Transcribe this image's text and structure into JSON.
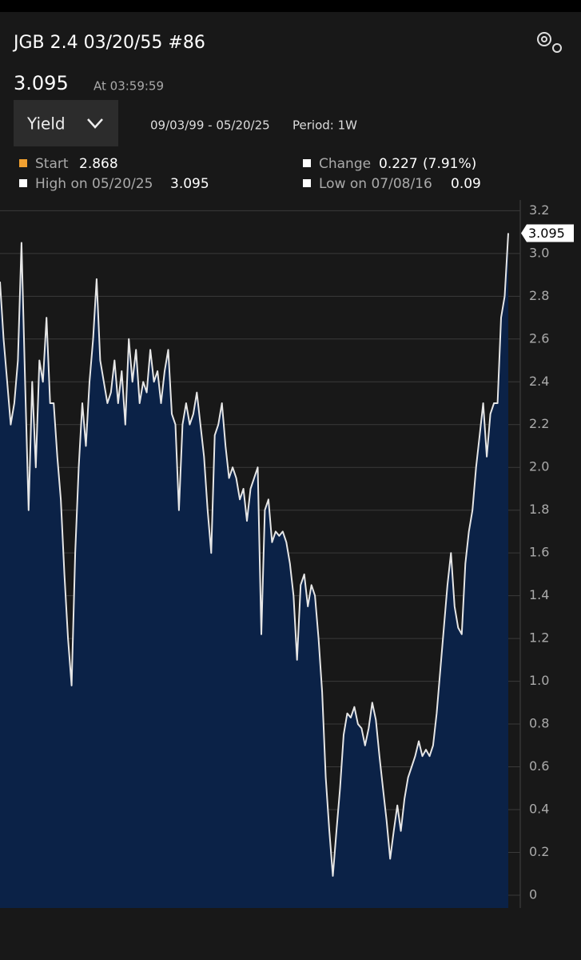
{
  "chart_data": {
    "type": "area",
    "title": "JGB 2.4 03/20/55 #86",
    "last_value": 3.095,
    "time_label": "At 03:59:59",
    "dropdown": "Yield",
    "date_range": "09/03/99 - 05/20/25",
    "period": "Period: 1W",
    "stats": {
      "start_label": "Start",
      "start": 2.868,
      "change_label": "Change",
      "change": 0.227,
      "change_pct": "(7.91%)",
      "high_label": "High on 05/20/25",
      "high": 3.095,
      "low_label": "Low on 07/08/16",
      "low": 0.09
    },
    "color": "#e6e6e6",
    "fill": "#0b2247",
    "start_color": "#f0a030",
    "ylim": [
      -0.06,
      3.25
    ],
    "yticks": [
      0,
      0.2,
      0.4,
      0.6,
      0.8,
      {
        "value": 1,
        "label": "1.0"
      },
      1.2,
      1.4,
      1.6,
      1.8,
      {
        "value": 2,
        "label": "2.0"
      },
      2.2,
      2.4,
      2.6,
      2.8,
      {
        "value": 3,
        "label": "3.0"
      },
      3.2
    ],
    "grid": true,
    "values": [
      2.868,
      2.6,
      2.4,
      2.2,
      2.3,
      2.5,
      3.05,
      2.4,
      1.8,
      2.4,
      2.0,
      2.5,
      2.4,
      2.7,
      2.3,
      2.3,
      2.05,
      1.85,
      1.5,
      1.2,
      0.98,
      1.6,
      2.0,
      2.3,
      2.1,
      2.4,
      2.6,
      2.88,
      2.5,
      2.4,
      2.3,
      2.35,
      2.5,
      2.3,
      2.45,
      2.2,
      2.6,
      2.4,
      2.55,
      2.3,
      2.4,
      2.35,
      2.55,
      2.4,
      2.45,
      2.3,
      2.45,
      2.55,
      2.25,
      2.2,
      1.8,
      2.2,
      2.3,
      2.2,
      2.25,
      2.35,
      2.2,
      2.05,
      1.8,
      1.6,
      2.15,
      2.2,
      2.3,
      2.1,
      1.95,
      2.0,
      1.95,
      1.85,
      1.9,
      1.75,
      1.9,
      1.95,
      2.0,
      1.22,
      1.8,
      1.85,
      1.65,
      1.7,
      1.68,
      1.7,
      1.65,
      1.55,
      1.4,
      1.1,
      1.45,
      1.5,
      1.35,
      1.45,
      1.4,
      1.2,
      0.95,
      0.55,
      0.3,
      0.09,
      0.3,
      0.5,
      0.75,
      0.85,
      0.83,
      0.88,
      0.8,
      0.78,
      0.7,
      0.78,
      0.9,
      0.82,
      0.65,
      0.5,
      0.35,
      0.17,
      0.3,
      0.42,
      0.3,
      0.45,
      0.55,
      0.6,
      0.65,
      0.72,
      0.65,
      0.68,
      0.65,
      0.7,
      0.85,
      1.05,
      1.25,
      1.45,
      1.6,
      1.35,
      1.25,
      1.22,
      1.55,
      1.7,
      1.8,
      2.0,
      2.15,
      2.3,
      2.05,
      2.25,
      2.3,
      2.3,
      2.7,
      2.8,
      3.095
    ]
  }
}
